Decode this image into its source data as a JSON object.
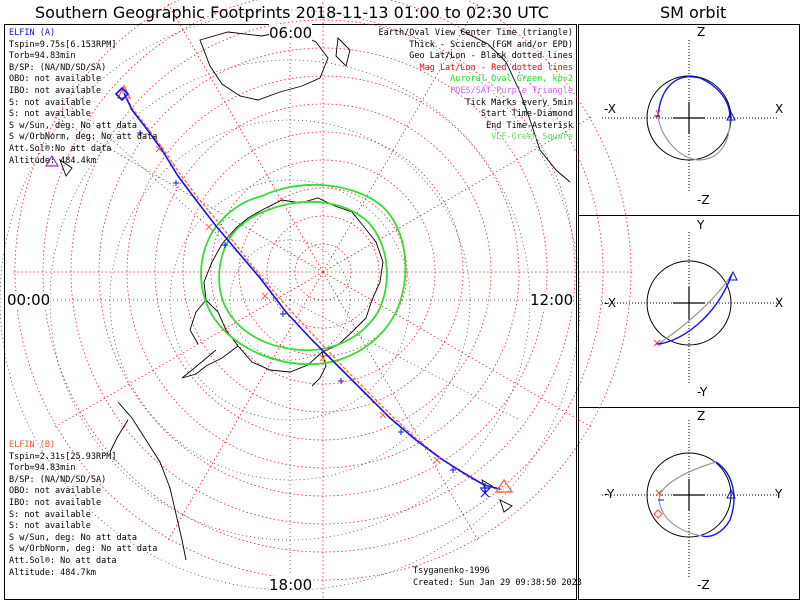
{
  "header": {
    "title": "Southern Geographic Footprints 2018-11-13 01:00 to 02:30 UTC",
    "orbit_title": "SM orbit"
  },
  "map": {
    "hour_labels": {
      "top": "06:00",
      "left": "00:00",
      "right": "12:00",
      "bottom": "18:00"
    },
    "credit": "Tsyganenko-1996",
    "created": "Created: Sun Jan 29 09:38:50 2023"
  },
  "elfin_a": {
    "name": "ELFIN (A)",
    "color": "#1010ff",
    "lines": [
      "Tspin=9.75s[6.153RPM]",
      "Torb=94.83min",
      "B/SP: (NA/ND/SD/SA)",
      "OBO: not available",
      "IBO: not available",
      "S: not available",
      "S: not available",
      "S w/Sun, deg: No att data",
      "S w/OrbNorm, deg: No att data",
      "Att.Sol®:No att data",
      "Altitude: 484.4km"
    ]
  },
  "elfin_b": {
    "name": "ELFIN (B)",
    "color": "#ff5533",
    "lines": [
      "Tspin=2.31s[25.93RPM]",
      "Torb=94.83min",
      "B/SP: (NA/ND/SD/SA)",
      "OBO: not available",
      "IBO: not available",
      "S: not available",
      "S: not available",
      "S w/Sun, deg: No att data",
      "S w/OrbNorm, deg: No att data",
      "Att.Sol®: No att data",
      "Altitude: 484.7km"
    ]
  },
  "legend": [
    {
      "text": "Earth/Oval View Center Time (triangle)",
      "color": "#000000"
    },
    {
      "text": "Thick - Science (FGM and/or EPD)",
      "color": "#000000"
    },
    {
      "text": "Geo Lat/Lon - Black dotted lines",
      "color": "#000000"
    },
    {
      "text": "Mag Lat/Lon - Red dotted lines",
      "color": "#ff0000"
    },
    {
      "text": "Auroral Oval-Green, kp=2",
      "color": "#22dd22"
    },
    {
      "text": "POES/SAT-Purple Triangle",
      "color": "#cc66ff"
    },
    {
      "text": "Tick Marks every 5min",
      "color": "#000000"
    },
    {
      "text": "Start Time-Diamond",
      "color": "#000000"
    },
    {
      "text": "End Time-Asterisk",
      "color": "#000000"
    },
    {
      "text": "VLF-Green Square",
      "color": "#66dd66"
    }
  ],
  "orbit_panels": [
    {
      "top_label": "Z",
      "bottom_label": "-Z",
      "left_label": "-X",
      "right_label": "X"
    },
    {
      "top_label": "Y",
      "bottom_label": "-Y",
      "left_label": "-X",
      "right_label": "X"
    },
    {
      "top_label": "Z",
      "bottom_label": "-Z",
      "left_label": "-Y",
      "right_label": "Y"
    }
  ]
}
